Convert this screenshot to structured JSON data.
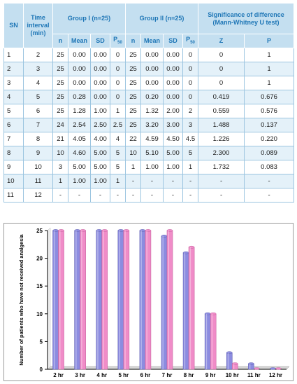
{
  "table": {
    "header": {
      "sn": "SN",
      "time_interval": "Time interval (min)",
      "group1": "Group I (n=25)",
      "group2": "Group II (n=25)",
      "significance": "Significance of difference (Mann-Whitney U test)",
      "n": "n",
      "mean": "Mean",
      "sd": "SD",
      "p": "P",
      "p_sub": "50",
      "z": "Z",
      "pval": "P"
    },
    "rows": [
      [
        "1",
        "2",
        "25",
        "0.00",
        "0.00",
        "0",
        "25",
        "0.00",
        "0.00",
        "0",
        "0",
        "1"
      ],
      [
        "2",
        "3",
        "25",
        "0.00",
        "0.00",
        "0",
        "25",
        "0.00",
        "0.00",
        "0",
        "0",
        "1"
      ],
      [
        "3",
        "4",
        "25",
        "0.00",
        "0.00",
        "0",
        "25",
        "0.00",
        "0.00",
        "0",
        "0",
        "1"
      ],
      [
        "4",
        "5",
        "25",
        "0.28",
        "0.00",
        "0",
        "25",
        "0.20",
        "0.00",
        "0",
        "0.419",
        "0.676"
      ],
      [
        "5",
        "6",
        "25",
        "1.28",
        "1.00",
        "1",
        "25",
        "1.32",
        "2.00",
        "2",
        "0.559",
        "0.576"
      ],
      [
        "6",
        "7",
        "24",
        "2.54",
        "2.50",
        "2.5",
        "25",
        "3.20",
        "3.00",
        "3",
        "1.488",
        "0.137"
      ],
      [
        "7",
        "8",
        "21",
        "4.05",
        "4.00",
        "4",
        "22",
        "4.59",
        "4.50",
        "4.5",
        "1.226",
        "0.220"
      ],
      [
        "8",
        "9",
        "10",
        "4.60",
        "5.00",
        "5",
        "10",
        "5.10",
        "5.00",
        "5",
        "2.300",
        "0.089"
      ],
      [
        "9",
        "10",
        "3",
        "5.00",
        "5.00",
        "5",
        "1",
        "1.00",
        "1.00",
        "1",
        "1.732",
        "0.083"
      ],
      [
        "10",
        "11",
        "1",
        "1.00",
        "1.00",
        "1",
        "-",
        "-",
        "-",
        "-",
        "-",
        "-"
      ],
      [
        "11",
        "12",
        "-",
        "-",
        "-",
        "-",
        "-",
        "-",
        "-",
        "-",
        "-",
        "-"
      ]
    ]
  },
  "chart_data": {
    "type": "bar",
    "ylabel": "Number of patients who have not received analgesia",
    "xlabel": "",
    "ylim": [
      0,
      25
    ],
    "yticks": [
      "0",
      "5",
      "10",
      "15",
      "20",
      "25"
    ],
    "categories": [
      "2 hr",
      "3 hr",
      "4 hr",
      "5 hr",
      "6 hr",
      "7 hr",
      "8 hr",
      "9 hr",
      "10 hr",
      "11 hr",
      "12 hr"
    ],
    "series": [
      {
        "values": [
          25,
          25,
          25,
          25,
          25,
          24,
          21,
          10,
          3,
          1,
          0
        ]
      },
      {
        "values": [
          25,
          25,
          25,
          25,
          25,
          25,
          22,
          10,
          1,
          0,
          0
        ]
      }
    ],
    "colors": {
      "series1": "#8c8ce0",
      "series1_dark": "#6464b4",
      "series2": "#f08cc8",
      "series2_dark": "#c864a0"
    },
    "grid": false,
    "legend": "none"
  }
}
